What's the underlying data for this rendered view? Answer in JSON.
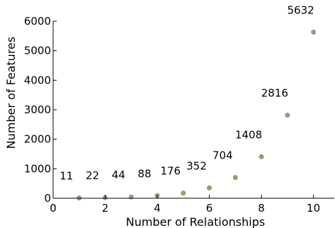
{
  "chart_data": {
    "type": "scatter",
    "xlabel": "Number of Relationships",
    "ylabel": "Number of Features",
    "xlim": [
      0,
      10.8
    ],
    "ylim": [
      0,
      6000
    ],
    "xticks": [
      0,
      2,
      4,
      6,
      8,
      10
    ],
    "yticks": [
      0,
      1000,
      2000,
      3000,
      4000,
      5000,
      6000
    ],
    "grid": false,
    "marker_color": "#88aa77",
    "points": [
      {
        "x": 1,
        "y": 11,
        "label": "11"
      },
      {
        "x": 2,
        "y": 22,
        "label": "22"
      },
      {
        "x": 3,
        "y": 44,
        "label": "44"
      },
      {
        "x": 4,
        "y": 88,
        "label": "88"
      },
      {
        "x": 5,
        "y": 176,
        "label": "176"
      },
      {
        "x": 6,
        "y": 352,
        "label": "352"
      },
      {
        "x": 7,
        "y": 704,
        "label": "704"
      },
      {
        "x": 8,
        "y": 1408,
        "label": "1408"
      },
      {
        "x": 9,
        "y": 2816,
        "label": "2816"
      },
      {
        "x": 10,
        "y": 5632,
        "label": "5632"
      }
    ]
  }
}
